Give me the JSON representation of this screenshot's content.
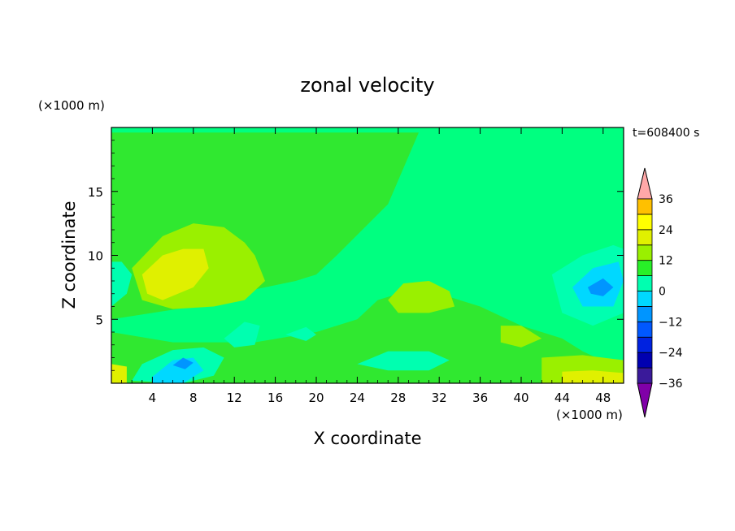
{
  "chart_data": {
    "type": "heatmap",
    "title": "zonal velocity",
    "xlabel": "X coordinate",
    "ylabel": "Z coordinate",
    "x_unit": "(×1000 m)",
    "y_unit": "(×1000 m)",
    "time_label": "t=608400 s",
    "xlim": [
      0,
      50
    ],
    "ylim": [
      0,
      20
    ],
    "x_ticks": [
      4,
      8,
      12,
      16,
      20,
      24,
      28,
      32,
      36,
      40,
      44,
      48
    ],
    "y_ticks": [
      5,
      10,
      15
    ],
    "colorbar": {
      "min": -42,
      "max": 42,
      "step": 6,
      "labels": [
        36,
        24,
        12,
        0,
        -12,
        -24,
        -36
      ],
      "colors": [
        "#8000a8",
        "#3a1a9a",
        "#0000b0",
        "#0022e0",
        "#0058ff",
        "#0095ff",
        "#00d8ff",
        "#00ffb0",
        "#28f028",
        "#9af000",
        "#e0f000",
        "#ffff00",
        "#ffc000",
        "#ff8000",
        "#ff3000",
        "#e80000",
        "#ffa8a8"
      ]
    },
    "background_level_color": "#00ff80",
    "field_regions": [
      {
        "color": "#30e830",
        "points": [
          [
            0,
            19.6
          ],
          [
            14,
            19.6
          ],
          [
            30,
            19.6
          ],
          [
            27,
            14
          ],
          [
            22,
            10
          ],
          [
            20,
            8.5
          ],
          [
            18,
            8
          ],
          [
            12,
            7
          ],
          [
            8,
            6
          ],
          [
            4,
            5.5
          ],
          [
            0,
            5
          ]
        ]
      },
      {
        "color": "#30e830",
        "points": [
          [
            0,
            4
          ],
          [
            6,
            3.2
          ],
          [
            14,
            3.2
          ],
          [
            20,
            4
          ],
          [
            24,
            5
          ],
          [
            26,
            6.5
          ],
          [
            30,
            7.5
          ],
          [
            36,
            6
          ],
          [
            40,
            4.5
          ],
          [
            44,
            3.5
          ],
          [
            46,
            2.5
          ],
          [
            50,
            1
          ],
          [
            50,
            0
          ],
          [
            0,
            0
          ]
        ]
      },
      {
        "color": "#9af000",
        "points": [
          [
            2,
            9
          ],
          [
            5,
            11.5
          ],
          [
            8,
            12.5
          ],
          [
            11,
            12.2
          ],
          [
            13,
            11
          ],
          [
            14,
            10
          ],
          [
            15,
            8
          ],
          [
            13,
            6.5
          ],
          [
            10,
            6
          ],
          [
            6,
            5.8
          ],
          [
            3,
            6.5
          ]
        ]
      },
      {
        "color": "#e0f000",
        "points": [
          [
            3,
            8.5
          ],
          [
            5,
            10
          ],
          [
            7,
            10.5
          ],
          [
            9,
            10.5
          ],
          [
            9.5,
            9
          ],
          [
            8,
            7.5
          ],
          [
            5,
            6.5
          ],
          [
            3.5,
            7
          ]
        ]
      },
      {
        "color": "#9af000",
        "points": [
          [
            27,
            6.5
          ],
          [
            28.5,
            7.8
          ],
          [
            31,
            8
          ],
          [
            33,
            7.2
          ],
          [
            33.5,
            6
          ],
          [
            31,
            5.5
          ],
          [
            28,
            5.5
          ]
        ]
      },
      {
        "color": "#9af000",
        "points": [
          [
            38,
            4.5
          ],
          [
            40,
            4.5
          ],
          [
            42,
            3.5
          ],
          [
            40,
            2.8
          ],
          [
            38,
            3.2
          ]
        ]
      },
      {
        "color": "#9af000",
        "points": [
          [
            42,
            2
          ],
          [
            46,
            2.2
          ],
          [
            50,
            1.8
          ],
          [
            50,
            0
          ],
          [
            42,
            0
          ]
        ]
      },
      {
        "color": "#e0f000",
        "points": [
          [
            44,
            0.9
          ],
          [
            47,
            1
          ],
          [
            50,
            0.8
          ],
          [
            50,
            0
          ],
          [
            44,
            0
          ]
        ]
      },
      {
        "color": "#00ffb0",
        "points": [
          [
            43,
            8.5
          ],
          [
            46,
            10
          ],
          [
            49,
            10.8
          ],
          [
            50,
            10.5
          ],
          [
            50,
            5.5
          ],
          [
            47,
            4.5
          ],
          [
            44,
            5.5
          ]
        ]
      },
      {
        "color": "#00d8ff",
        "points": [
          [
            45,
            7.5
          ],
          [
            47,
            9
          ],
          [
            49.5,
            9.5
          ],
          [
            50,
            8
          ],
          [
            49,
            6
          ],
          [
            46,
            6
          ]
        ]
      },
      {
        "color": "#0095ff",
        "points": [
          [
            46.5,
            7.5
          ],
          [
            48,
            8.2
          ],
          [
            49,
            7.5
          ],
          [
            48,
            6.8
          ],
          [
            46.8,
            7
          ]
        ]
      },
      {
        "color": "#00ffb0",
        "points": [
          [
            3,
            1.5
          ],
          [
            6,
            2.6
          ],
          [
            9,
            2.8
          ],
          [
            11,
            2
          ],
          [
            10,
            0.6
          ],
          [
            7,
            0
          ],
          [
            2,
            0.2
          ]
        ]
      },
      {
        "color": "#00d8ff",
        "points": [
          [
            4,
            0.5
          ],
          [
            6,
            1.8
          ],
          [
            8,
            2
          ],
          [
            9,
            1
          ],
          [
            7,
            0
          ],
          [
            4,
            0
          ]
        ]
      },
      {
        "color": "#0095ff",
        "points": [
          [
            6,
            1.4
          ],
          [
            7,
            2
          ],
          [
            8,
            1.6
          ],
          [
            7.2,
            1.1
          ]
        ]
      },
      {
        "color": "#00ffb0",
        "points": [
          [
            24,
            1.5
          ],
          [
            27,
            2.5
          ],
          [
            31,
            2.5
          ],
          [
            33,
            1.8
          ],
          [
            31,
            1
          ],
          [
            27,
            1
          ]
        ]
      },
      {
        "color": "#00ffb0",
        "points": [
          [
            11,
            3.5
          ],
          [
            13,
            4.8
          ],
          [
            14.5,
            4.5
          ],
          [
            14,
            3
          ],
          [
            12,
            2.8
          ]
        ]
      },
      {
        "color": "#00ffb0",
        "points": [
          [
            17,
            3.8
          ],
          [
            19,
            4.4
          ],
          [
            20,
            3.8
          ],
          [
            19,
            3.3
          ]
        ]
      },
      {
        "color": "#00ffb0",
        "points": [
          [
            0,
            6
          ],
          [
            1.5,
            7
          ],
          [
            2,
            8.5
          ],
          [
            1,
            9.5
          ],
          [
            0,
            9.5
          ]
        ]
      },
      {
        "color": "#e0f000",
        "points": [
          [
            0,
            0
          ],
          [
            1.5,
            0
          ],
          [
            1.5,
            1.3
          ],
          [
            0,
            1.5
          ]
        ]
      }
    ]
  }
}
